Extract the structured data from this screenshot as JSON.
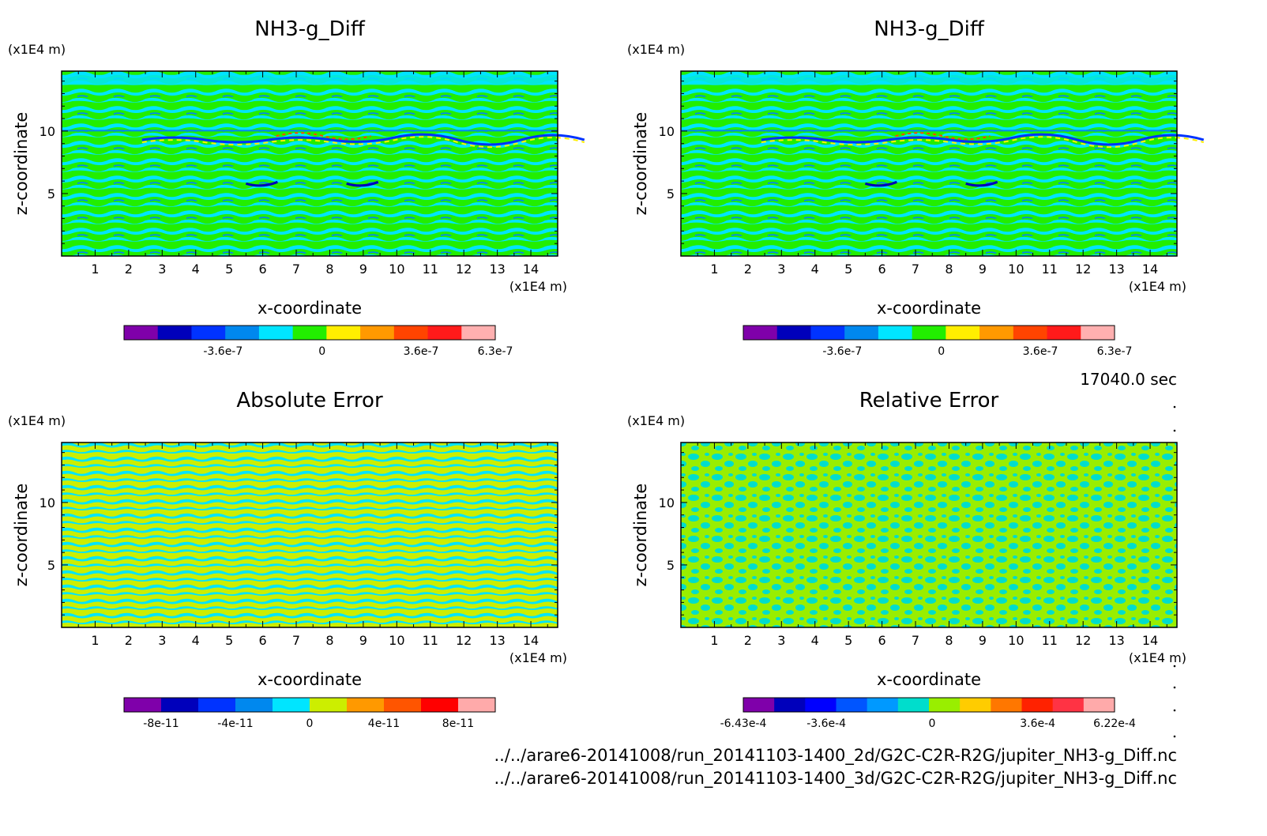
{
  "chart_data": [
    {
      "type": "heatmap",
      "title": "NH3-g_Diff",
      "xlabel": "x-coordinate",
      "ylabel": "z-coordinate",
      "x_unit": "(x1E4 m)",
      "y_unit": "(x1E4 m)",
      "xlim": [
        0,
        14.8
      ],
      "ylim": [
        0,
        14.8
      ],
      "x_ticks": [
        "1",
        "2",
        "3",
        "4",
        "5",
        "6",
        "7",
        "8",
        "9",
        "10",
        "11",
        "12",
        "13",
        "14"
      ],
      "y_ticks": [
        "5",
        "10"
      ],
      "colorbar": {
        "colors": [
          "#7f00aa",
          "#0000bb",
          "#0033ff",
          "#0088ee",
          "#00e5ff",
          "#22ee00",
          "#ffee00",
          "#ff9900",
          "#ff4400",
          "#ff1a1a",
          "#ffb0b0"
        ],
        "labels": [
          {
            "text": "-3.6e-7",
            "value": -3.6e-07
          },
          {
            "text": "0",
            "value": 0
          },
          {
            "text": "3.6e-7",
            "value": 3.6e-07
          },
          {
            "text": "6.3e-7",
            "value": 6.3e-07
          }
        ],
        "range": [
          -7.2e-07,
          6.3e-07
        ]
      }
    },
    {
      "type": "heatmap",
      "title": "NH3-g_Diff",
      "xlabel": "x-coordinate",
      "ylabel": "z-coordinate",
      "x_unit": "(x1E4 m)",
      "y_unit": "(x1E4 m)",
      "xlim": [
        0,
        14.8
      ],
      "ylim": [
        0,
        14.8
      ],
      "x_ticks": [
        "1",
        "2",
        "3",
        "4",
        "5",
        "6",
        "7",
        "8",
        "9",
        "10",
        "11",
        "12",
        "13",
        "14"
      ],
      "y_ticks": [
        "5",
        "10"
      ],
      "colorbar": {
        "colors": [
          "#7f00aa",
          "#0000bb",
          "#0033ff",
          "#0088ee",
          "#00e5ff",
          "#22ee00",
          "#ffee00",
          "#ff9900",
          "#ff4400",
          "#ff1a1a",
          "#ffb0b0"
        ],
        "labels": [
          {
            "text": "-3.6e-7",
            "value": -3.6e-07
          },
          {
            "text": "0",
            "value": 0
          },
          {
            "text": "3.6e-7",
            "value": 3.6e-07
          },
          {
            "text": "6.3e-7",
            "value": 6.3e-07
          }
        ],
        "range": [
          -7.2e-07,
          6.3e-07
        ]
      }
    },
    {
      "type": "heatmap",
      "title": "Absolute Error",
      "xlabel": "x-coordinate",
      "ylabel": "z-coordinate",
      "x_unit": "(x1E4 m)",
      "y_unit": "(x1E4 m)",
      "xlim": [
        0,
        14.8
      ],
      "ylim": [
        0,
        14.8
      ],
      "x_ticks": [
        "1",
        "2",
        "3",
        "4",
        "5",
        "6",
        "7",
        "8",
        "9",
        "10",
        "11",
        "12",
        "13",
        "14"
      ],
      "y_ticks": [
        "5",
        "10"
      ],
      "colorbar": {
        "colors": [
          "#7f00aa",
          "#0000bb",
          "#0033ff",
          "#0088ee",
          "#00e5ff",
          "#ccee00",
          "#ff9900",
          "#ff5500",
          "#ff0000",
          "#ffaaaa"
        ],
        "labels": [
          {
            "text": "-8e-11",
            "value": -8e-11
          },
          {
            "text": "-4e-11",
            "value": -4e-11
          },
          {
            "text": "0",
            "value": 0
          },
          {
            "text": "4e-11",
            "value": 4e-11
          },
          {
            "text": "8e-11",
            "value": 8e-11
          }
        ],
        "range": [
          -1e-10,
          1e-10
        ]
      }
    },
    {
      "type": "heatmap",
      "title": "Relative Error",
      "xlabel": "x-coordinate",
      "ylabel": "z-coordinate",
      "x_unit": "(x1E4 m)",
      "y_unit": "(x1E4 m)",
      "xlim": [
        0,
        14.8
      ],
      "ylim": [
        0,
        14.8
      ],
      "x_ticks": [
        "1",
        "2",
        "3",
        "4",
        "5",
        "6",
        "7",
        "8",
        "9",
        "10",
        "11",
        "12",
        "13",
        "14"
      ],
      "y_ticks": [
        "5",
        "10"
      ],
      "colorbar": {
        "colors": [
          "#7f00aa",
          "#0000bb",
          "#0000ff",
          "#0055ff",
          "#0099ff",
          "#00ddcc",
          "#99ee00",
          "#ffcc00",
          "#ff7700",
          "#ff2200",
          "#ff3344",
          "#ffaaaa"
        ],
        "labels": [
          {
            "text": "-6.43e-4",
            "value": -0.000643
          },
          {
            "text": "-3.6e-4",
            "value": -0.00036
          },
          {
            "text": "0",
            "value": 0
          },
          {
            "text": "3.6e-4",
            "value": 0.00036
          },
          {
            "text": "6.22e-4",
            "value": 0.000622
          }
        ],
        "range": [
          -0.000643,
          0.000622
        ]
      }
    }
  ],
  "time_label": "17040.0 sec",
  "file_paths": [
    "../../arare6-20141008/run_20141103-1400_2d/G2C-C2R-R2G/jupiter_NH3-g_Diff.nc",
    "../../arare6-20141008/run_20141103-1400_3d/G2C-C2R-R2G/jupiter_NH3-g_Diff.nc"
  ]
}
